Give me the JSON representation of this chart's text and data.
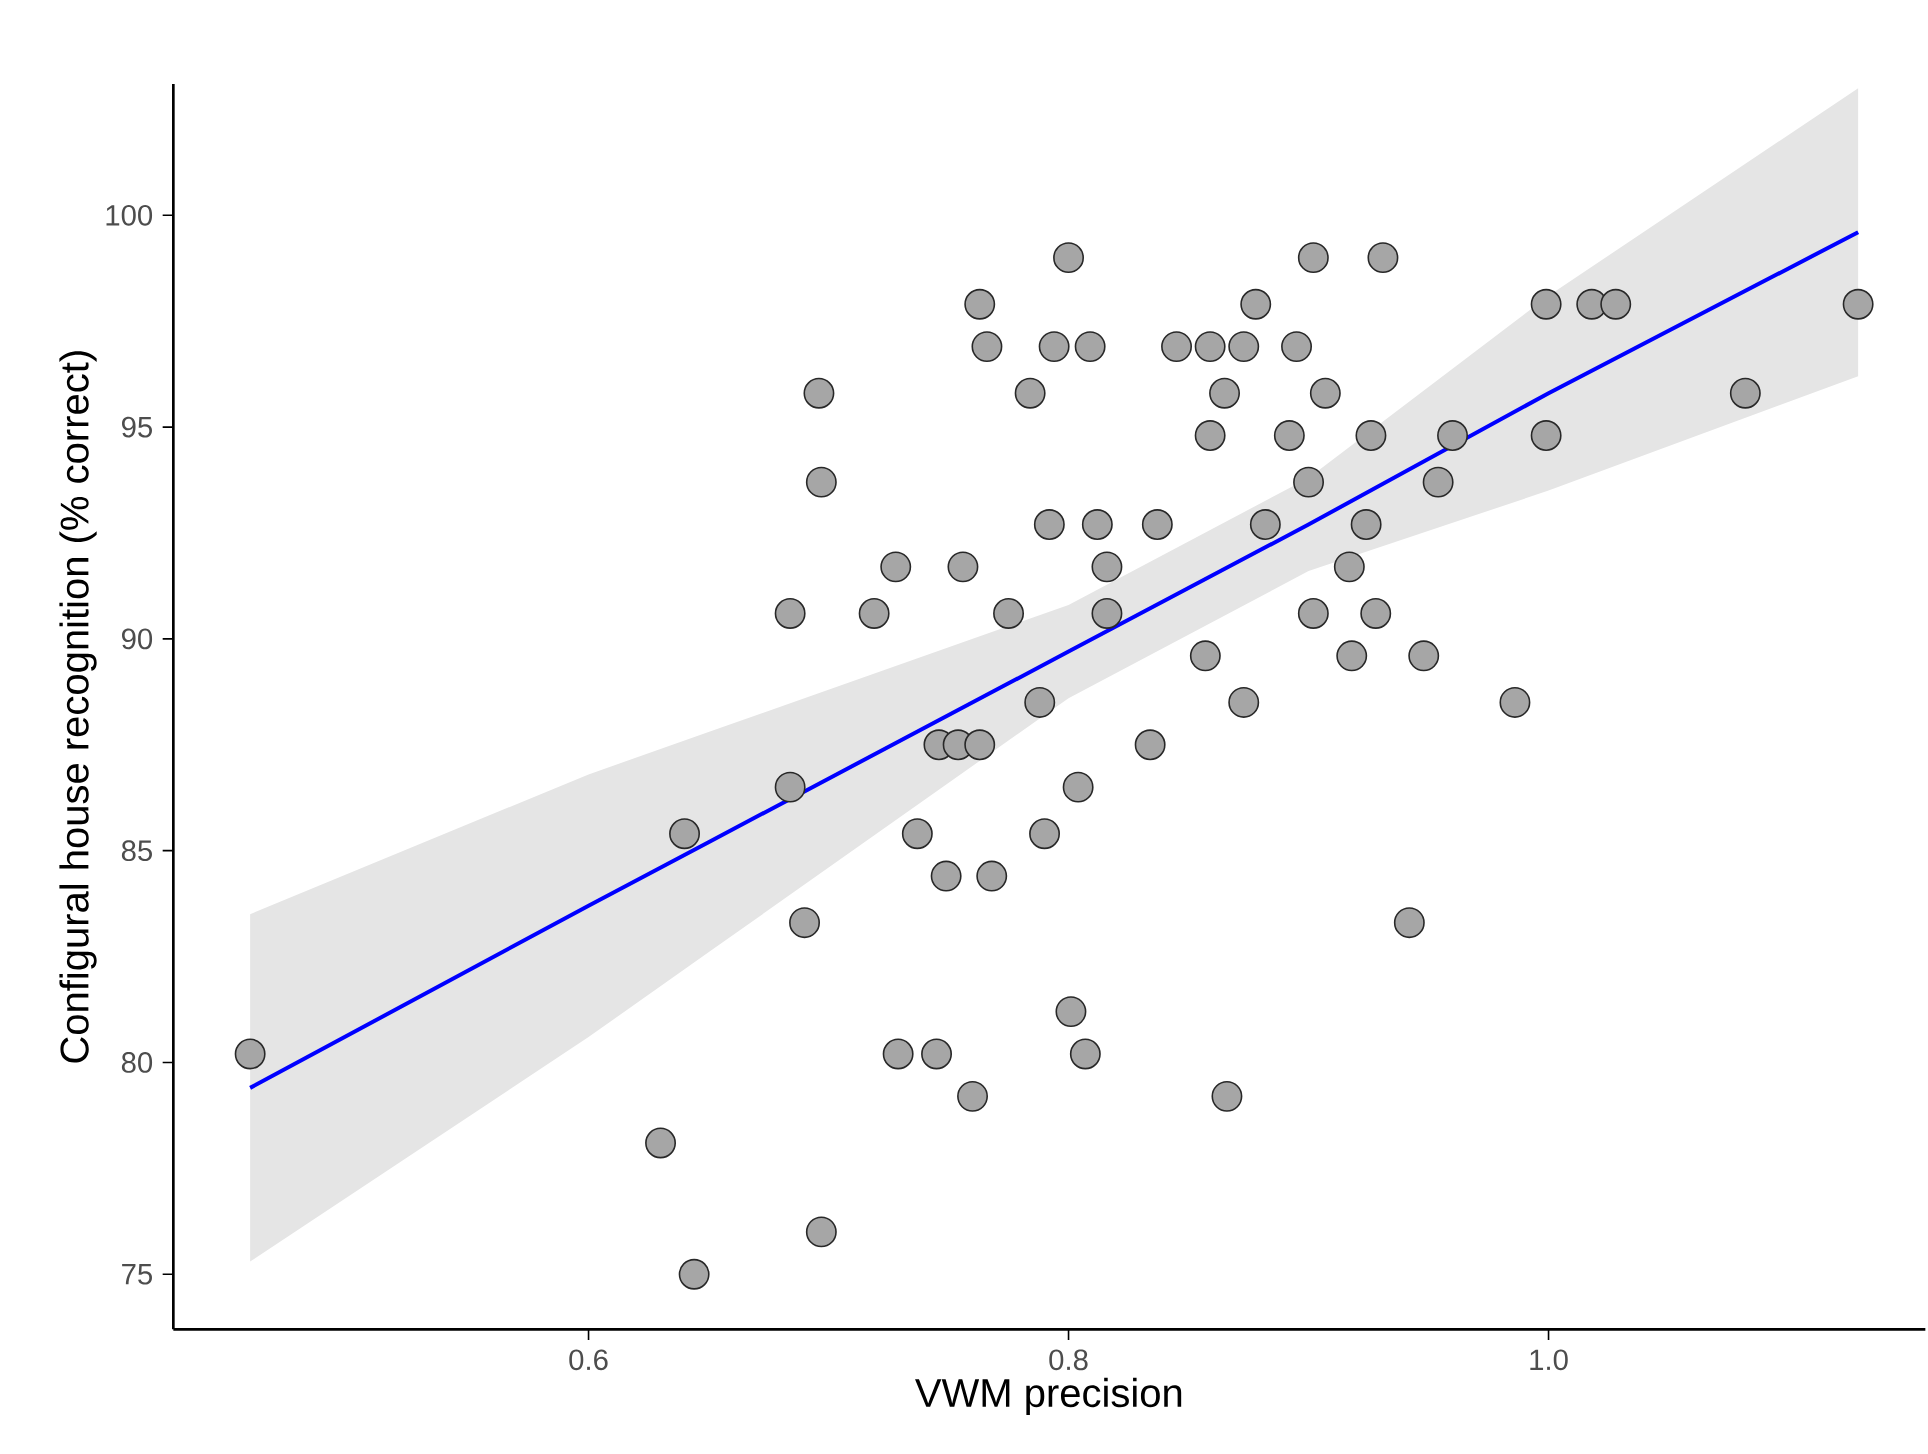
{
  "chart_data": {
    "type": "scatter",
    "xlabel": "VWM precision",
    "ylabel": "Configural house recognition (% correct)",
    "xlim": [
      0.427,
      1.157
    ],
    "ylim": [
      73.7,
      103.1
    ],
    "xticks": [
      0.6,
      0.8,
      {
        "value": 1.0,
        "label": "1.0"
      }
    ],
    "yticks": [
      75,
      80,
      85,
      90,
      95,
      100
    ],
    "series": [
      {
        "marker": "circle",
        "color": "#a6a6a6",
        "x": [
          0.459,
          0.63,
          0.64,
          0.644,
          0.684,
          0.684,
          0.69,
          0.696,
          0.697,
          0.697,
          0.719,
          0.728,
          0.729,
          0.737,
          0.745,
          0.746,
          0.749,
          0.754,
          0.756,
          0.76,
          0.763,
          0.763,
          0.766,
          0.768,
          0.775,
          0.784,
          0.788,
          0.79,
          0.792,
          0.794,
          0.8,
          0.801,
          0.804,
          0.807,
          0.809,
          0.812,
          0.816,
          0.816,
          0.834,
          0.837,
          0.845,
          0.857,
          0.859,
          0.859,
          0.865,
          0.866,
          0.873,
          0.873,
          0.878,
          0.882,
          0.892,
          0.895,
          0.9,
          0.902,
          0.902,
          0.907,
          0.917,
          0.918,
          0.924,
          0.926,
          0.928,
          0.931,
          0.942,
          0.948,
          0.954,
          0.96,
          0.986,
          0.999,
          0.999,
          1.018,
          1.028,
          1.082,
          1.129
        ],
        "values": [
          80.2,
          78.1,
          85.4,
          75.0,
          90.6,
          86.5,
          83.3,
          95.8,
          93.7,
          76.0,
          90.6,
          91.7,
          80.2,
          85.4,
          80.2,
          87.5,
          84.4,
          87.5,
          91.7,
          79.2,
          87.5,
          97.9,
          96.9,
          84.4,
          90.6,
          95.8,
          88.5,
          85.4,
          92.7,
          96.9,
          99.0,
          81.2,
          86.5,
          80.2,
          96.9,
          92.7,
          91.7,
          90.6,
          87.5,
          92.7,
          96.9,
          89.6,
          94.8,
          96.9,
          95.8,
          79.2,
          96.9,
          88.5,
          97.9,
          92.7,
          94.8,
          96.9,
          93.7,
          99.0,
          90.6,
          95.8,
          91.7,
          89.6,
          92.7,
          94.8,
          90.6,
          99.0,
          83.3,
          89.6,
          93.7,
          94.8,
          88.5,
          94.8,
          97.9,
          97.9,
          97.9,
          95.8,
          97.9
        ]
      },
      {
        "type": "line",
        "marker": "none",
        "color": "#0000ff",
        "x": [
          0.459,
          0.6,
          0.65,
          0.8,
          0.9,
          1.0,
          1.129
        ],
        "values": [
          79.4,
          83.7,
          85.2,
          89.7,
          92.7,
          95.8,
          99.6
        ],
        "lower": [
          75.3,
          80.6,
          82.6,
          88.6,
          91.6,
          93.5,
          96.2
        ],
        "upper": [
          83.5,
          86.8,
          87.8,
          90.8,
          93.8,
          98.1,
          103.0
        ]
      }
    ]
  }
}
